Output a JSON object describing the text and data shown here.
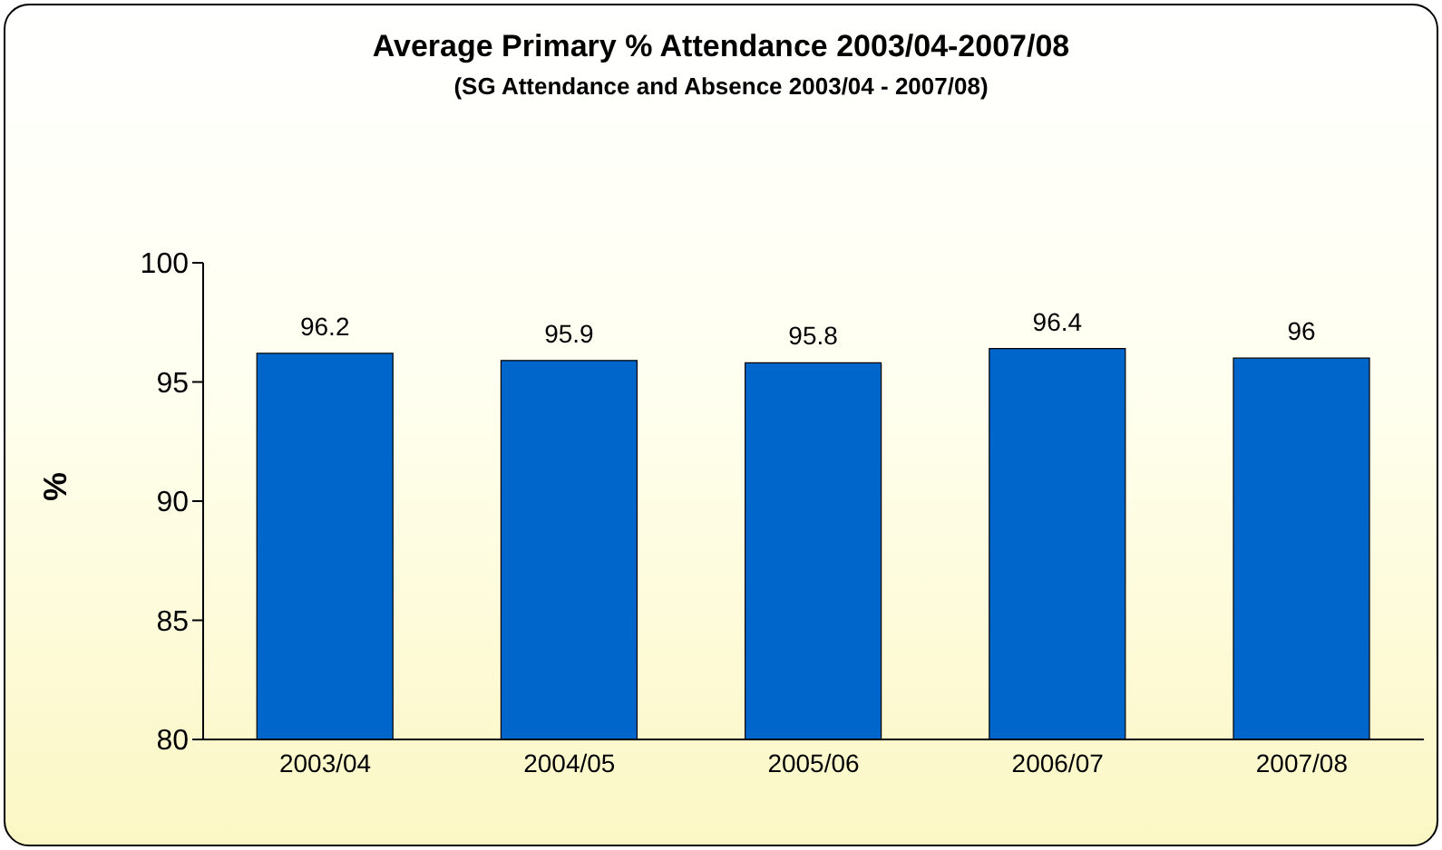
{
  "chart_data": {
    "type": "bar",
    "title": "Average Primary % Attendance 2003/04-2007/08",
    "subtitle": "(SG Attendance and Absence 2003/04 - 2007/08)",
    "ylabel": "%",
    "categories": [
      "2003/04",
      "2004/05",
      "2005/06",
      "2006/07",
      "2007/08"
    ],
    "values": [
      96.2,
      95.9,
      95.8,
      96.4,
      96
    ],
    "color": "#0066cc",
    "ylim": [
      80,
      100
    ],
    "yticks": [
      80,
      85,
      90,
      95,
      100
    ],
    "data_labels": true
  }
}
